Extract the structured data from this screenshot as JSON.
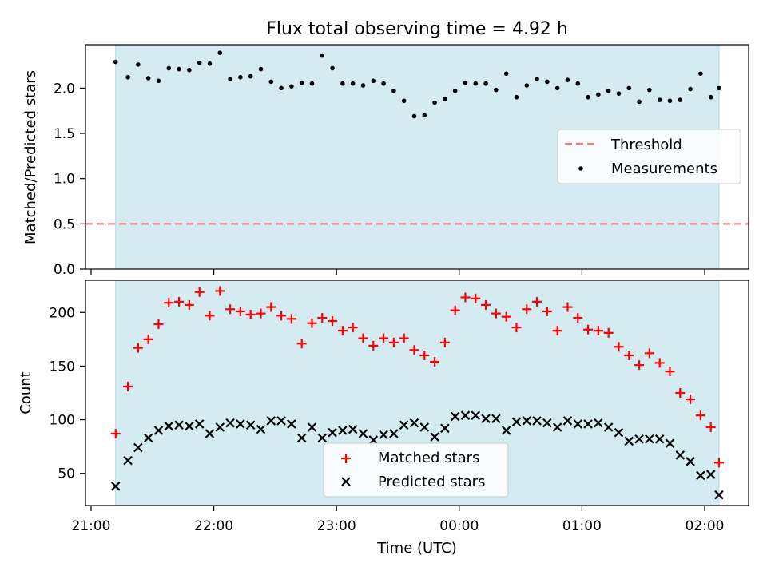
{
  "chart_data": {
    "title": "Flux total observing time = 4.92 h",
    "xlabel": "Time (UTC)",
    "x_ticks": [
      "21:00",
      "22:00",
      "23:00",
      "00:00",
      "01:00",
      "02:00"
    ],
    "observing_window": {
      "start": "21:12",
      "end": "02:07"
    },
    "shade_color": "#d4ebf1",
    "panels": [
      {
        "type": "scatter",
        "ylabel": "Matched/Predicted stars",
        "ylim": [
          0,
          2.48
        ],
        "y_ticks": [
          "0.0",
          "0.5",
          "1.0",
          "1.5",
          "2.0"
        ],
        "threshold": {
          "name": "Threshold",
          "value": 0.5,
          "color": "#f08080"
        },
        "legend": {
          "position": "right",
          "entries": [
            "Threshold",
            "Measurements"
          ]
        },
        "series": [
          {
            "name": "Measurements",
            "marker": "dot",
            "color": "#000000",
            "x": [
              "21:12",
              "21:18",
              "21:23",
              "21:28",
              "21:33",
              "21:38",
              "21:43",
              "21:48",
              "21:53",
              "21:58",
              "22:03",
              "22:08",
              "22:13",
              "22:18",
              "22:23",
              "22:28",
              "22:33",
              "22:38",
              "22:43",
              "22:48",
              "22:53",
              "22:58",
              "23:03",
              "23:08",
              "23:13",
              "23:18",
              "23:23",
              "23:28",
              "23:33",
              "23:38",
              "23:43",
              "23:48",
              "23:53",
              "23:58",
              "00:03",
              "00:08",
              "00:13",
              "00:18",
              "00:23",
              "00:28",
              "00:33",
              "00:38",
              "00:43",
              "00:48",
              "00:53",
              "00:58",
              "01:03",
              "01:08",
              "01:13",
              "01:18",
              "01:23",
              "01:28",
              "01:33",
              "01:38",
              "01:43",
              "01:48",
              "01:53",
              "01:58",
              "02:03",
              "02:07"
            ],
            "y": [
              2.29,
              2.12,
              2.26,
              2.11,
              2.08,
              2.22,
              2.21,
              2.2,
              2.28,
              2.27,
              2.39,
              2.1,
              2.12,
              2.13,
              2.21,
              2.07,
              2.0,
              2.02,
              2.06,
              2.05,
              2.36,
              2.22,
              2.05,
              2.05,
              2.03,
              2.08,
              2.05,
              1.97,
              1.86,
              1.69,
              1.7,
              1.84,
              1.88,
              1.97,
              2.06,
              2.05,
              2.05,
              1.98,
              2.16,
              1.9,
              2.03,
              2.1,
              2.07,
              2.0,
              2.09,
              2.05,
              1.9,
              1.93,
              1.97,
              1.94,
              2.0,
              1.85,
              1.98,
              1.87,
              1.86,
              1.87,
              1.99,
              2.16,
              1.9,
              2.0
            ]
          }
        ]
      },
      {
        "type": "scatter",
        "ylabel": "Count",
        "ylim": [
          20,
          230
        ],
        "y_ticks": [
          "50",
          "100",
          "150",
          "200"
        ],
        "legend": {
          "position": "bottom-center",
          "entries": [
            "Matched stars",
            "Predicted stars"
          ]
        },
        "series": [
          {
            "name": "Matched stars",
            "marker": "plus",
            "color": "#ff0000",
            "x": [
              "21:12",
              "21:18",
              "21:23",
              "21:28",
              "21:33",
              "21:38",
              "21:43",
              "21:48",
              "21:53",
              "21:58",
              "22:03",
              "22:08",
              "22:13",
              "22:18",
              "22:23",
              "22:28",
              "22:33",
              "22:38",
              "22:43",
              "22:48",
              "22:53",
              "22:58",
              "23:03",
              "23:08",
              "23:13",
              "23:18",
              "23:23",
              "23:28",
              "23:33",
              "23:38",
              "23:43",
              "23:48",
              "23:53",
              "23:58",
              "00:03",
              "00:08",
              "00:13",
              "00:18",
              "00:23",
              "00:28",
              "00:33",
              "00:38",
              "00:43",
              "00:48",
              "00:53",
              "00:58",
              "01:03",
              "01:08",
              "01:13",
              "01:18",
              "01:23",
              "01:28",
              "01:33",
              "01:38",
              "01:43",
              "01:48",
              "01:53",
              "01:58",
              "02:03",
              "02:07"
            ],
            "y": [
              87,
              131,
              167,
              175,
              189,
              209,
              210,
              207,
              219,
              197,
              220,
              203,
              201,
              198,
              199,
              205,
              197,
              194,
              171,
              190,
              195,
              192,
              183,
              186,
              176,
              169,
              176,
              172,
              176,
              165,
              160,
              154,
              172,
              202,
              214,
              213,
              207,
              199,
              196,
              186,
              203,
              210,
              201,
              183,
              205,
              195,
              184,
              183,
              181,
              168,
              160,
              151,
              162,
              153,
              145,
              125,
              119,
              104,
              93,
              60
            ]
          },
          {
            "name": "Predicted stars",
            "marker": "x",
            "color": "#000000",
            "x": [
              "21:12",
              "21:18",
              "21:23",
              "21:28",
              "21:33",
              "21:38",
              "21:43",
              "21:48",
              "21:53",
              "21:58",
              "22:03",
              "22:08",
              "22:13",
              "22:18",
              "22:23",
              "22:28",
              "22:33",
              "22:38",
              "22:43",
              "22:48",
              "22:53",
              "22:58",
              "23:03",
              "23:08",
              "23:13",
              "23:18",
              "23:23",
              "23:28",
              "23:33",
              "23:38",
              "23:43",
              "23:48",
              "23:53",
              "23:58",
              "00:03",
              "00:08",
              "00:13",
              "00:18",
              "00:23",
              "00:28",
              "00:33",
              "00:38",
              "00:43",
              "00:48",
              "00:53",
              "00:58",
              "01:03",
              "01:08",
              "01:13",
              "01:18",
              "01:23",
              "01:28",
              "01:33",
              "01:38",
              "01:43",
              "01:48",
              "01:53",
              "01:58",
              "02:03",
              "02:07"
            ],
            "y": [
              38,
              62,
              74,
              83,
              90,
              94,
              95,
              94,
              96,
              87,
              93,
              97,
              96,
              95,
              91,
              99,
              99,
              96,
              83,
              93,
              83,
              88,
              90,
              91,
              87,
              81,
              86,
              87,
              95,
              97,
              93,
              84,
              92,
              103,
              104,
              104,
              101,
              101,
              90,
              98,
              99,
              99,
              97,
              93,
              99,
              96,
              96,
              97,
              93,
              88,
              80,
              82,
              82,
              82,
              78,
              67,
              61,
              48,
              49,
              30
            ]
          }
        ]
      }
    ]
  }
}
